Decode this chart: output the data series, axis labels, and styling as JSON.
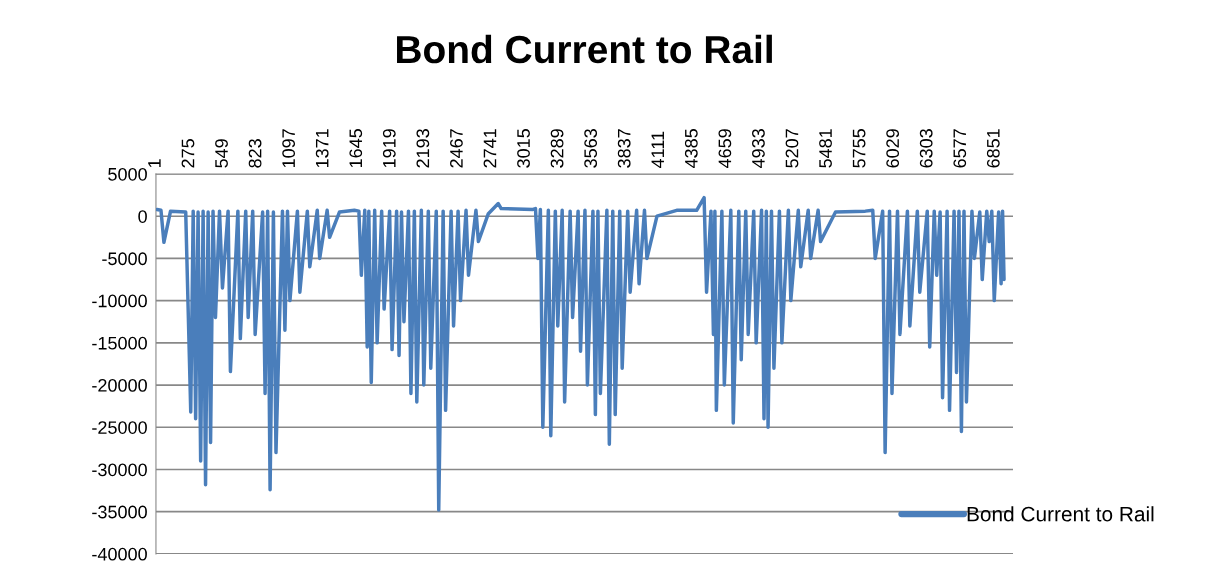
{
  "chart_data": {
    "type": "line",
    "title": "Bond Current to Rail",
    "legend": "right",
    "grid": "y",
    "marker": "none",
    "line_style": "solid",
    "xlim": [
      1,
      7000
    ],
    "xticks": [
      1,
      275,
      549,
      823,
      1097,
      1371,
      1645,
      1919,
      2193,
      2467,
      2741,
      3015,
      3289,
      3563,
      3837,
      4111,
      4385,
      4659,
      4933,
      5207,
      5481,
      5755,
      6029,
      6303,
      6577,
      6851
    ],
    "ylim": [
      -40000,
      5000
    ],
    "yticks": [
      -40000,
      -35000,
      -30000,
      -25000,
      -20000,
      -15000,
      -10000,
      -5000,
      0,
      5000
    ],
    "series": [
      {
        "name": "Bond Current to Rail",
        "color": "#4a7ebb",
        "x": [
          10,
          42,
          66,
          120,
          244,
          285,
          305,
          325,
          345,
          366,
          386,
          406,
          427,
          447,
          467,
          487,
          520,
          544,
          590,
          609,
          670,
          690,
          734,
          754,
          791,
          811,
          872,
          892,
          913,
          933,
          960,
          981,
          1034,
          1054,
          1075,
          1095,
          1156,
          1176,
          1237,
          1257,
          1318,
          1338,
          1399,
          1419,
          1500,
          1621,
          1658,
          1678,
          1706,
          1726,
          1739,
          1759,
          1787,
          1807,
          1844,
          1864,
          1909,
          1929,
          1966,
          1986,
          2006,
          2026,
          2063,
          2083,
          2111,
          2131,
          2168,
          2188,
          2225,
          2245,
          2290,
          2310,
          2346,
          2366,
          2411,
          2431,
          2468,
          2488,
          2533,
          2553,
          2614,
          2634,
          2715,
          2796,
          2820,
          3079,
          3100,
          3120,
          3140,
          3160,
          3205,
          3225,
          3262,
          3282,
          3318,
          3338,
          3383,
          3403,
          3448,
          3468,
          3504,
          3524,
          3569,
          3589,
          3610,
          3630,
          3683,
          3703,
          3731,
          3751,
          3788,
          3808,
          3853,
          3873,
          3926,
          3946,
          3990,
          4010,
          4092,
          4253,
          4416,
          4477,
          4497,
          4533,
          4553,
          4565,
          4577,
          4622,
          4642,
          4695,
          4715,
          4760,
          4780,
          4817,
          4837,
          4882,
          4902,
          4946,
          4966,
          4985,
          4999,
          5027,
          5047,
          5092,
          5112,
          5165,
          5185,
          5246,
          5266,
          5327,
          5347,
          5408,
          5428,
          5550,
          5793,
          5854,
          5874,
          5935,
          5955,
          5991,
          6011,
          6056,
          6076,
          6137,
          6157,
          6218,
          6238,
          6299,
          6319,
          6356,
          6376,
          6404,
          6424,
          6461,
          6481,
          6518,
          6538,
          6558,
          6578,
          6599,
          6619,
          6664,
          6684,
          6728,
          6748,
          6785,
          6805,
          6826,
          6846,
          6882,
          6902,
          6914,
          6926
        ],
        "values": [
          800,
          700,
          -3100,
          600,
          500,
          -23200,
          600,
          -24000,
          500,
          -29000,
          600,
          -31800,
          500,
          -26800,
          600,
          -12000,
          600,
          -8500,
          600,
          -18400,
          600,
          -14500,
          600,
          -12000,
          600,
          -14000,
          500,
          -21000,
          600,
          -32400,
          500,
          -28000,
          600,
          -13500,
          600,
          -10000,
          600,
          -9000,
          600,
          -6000,
          700,
          -5000,
          700,
          -2500,
          500,
          700,
          600,
          -7000,
          700,
          -15500,
          600,
          -19700,
          700,
          -15000,
          600,
          -11000,
          600,
          -15800,
          600,
          -16500,
          500,
          -12500,
          600,
          -21000,
          600,
          -22000,
          700,
          -20000,
          600,
          -18000,
          600,
          -34800,
          600,
          -23000,
          600,
          -13000,
          600,
          -10000,
          700,
          -7000,
          700,
          -3000,
          300,
          1500,
          900,
          800,
          900,
          -5000,
          800,
          -25000,
          700,
          -26000,
          600,
          -13000,
          700,
          -22000,
          600,
          -12000,
          600,
          -16000,
          700,
          -20000,
          600,
          -23500,
          600,
          -21000,
          700,
          -27000,
          600,
          -23500,
          600,
          -18000,
          600,
          -9000,
          700,
          -8000,
          700,
          -5000,
          0,
          700,
          700,
          2200,
          -9000,
          600,
          -14000,
          600,
          -23000,
          600,
          -20000,
          700,
          -24500,
          600,
          -17000,
          600,
          -14000,
          600,
          -15000,
          700,
          -24000,
          600,
          -25000,
          600,
          -18000,
          600,
          -15000,
          700,
          -10000,
          700,
          -6000,
          700,
          -5000,
          700,
          -3000,
          500,
          600,
          700,
          -5000,
          600,
          -28000,
          600,
          -21000,
          600,
          -14000,
          600,
          -13000,
          600,
          -9000,
          600,
          -15500,
          600,
          -7000,
          500,
          -21500,
          600,
          -23000,
          600,
          -18500,
          600,
          -25500,
          600,
          -22000,
          600,
          -5000,
          500,
          -7500,
          600,
          -3000,
          600,
          -10000,
          500,
          -8000,
          600,
          -7500
        ]
      }
    ]
  }
}
